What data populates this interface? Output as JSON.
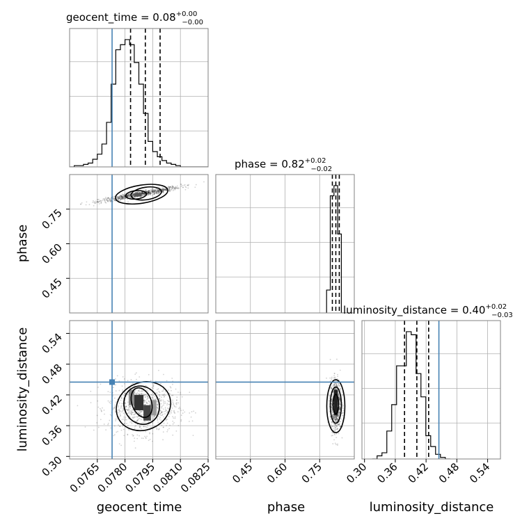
{
  "chart_data": {
    "type": "corner",
    "parameters": [
      "geocent_time",
      "phase",
      "luminosity_distance"
    ],
    "truths": {
      "geocent_time": 0.0773,
      "luminosity_distance": 0.445
    },
    "ranges": {
      "geocent_time": [
        0.075,
        0.0825
      ],
      "phase": [
        0.3,
        0.9
      ],
      "luminosity_distance": [
        0.295,
        0.565
      ]
    },
    "ticks": {
      "geocent_time": [
        "0.0765",
        "0.0780",
        "0.0795",
        "0.0810",
        "0.0825"
      ],
      "phase": [
        "0.45",
        "0.60",
        "0.75"
      ],
      "luminosity_distance": [
        "0.30",
        "0.36",
        "0.42",
        "0.48",
        "0.54"
      ]
    },
    "titles": [
      {
        "param": "geocent_time",
        "median": "0.08",
        "plus": "+0.00",
        "minus": "−0.00"
      },
      {
        "param": "phase",
        "median": "0.82",
        "plus": "+0.02",
        "minus": "−0.02"
      },
      {
        "param": "luminosity_distance",
        "median": "0.40",
        "plus": "+0.02",
        "minus": "−0.03"
      }
    ],
    "quantiles": {
      "geocent_time": [
        0.0783,
        0.0791,
        0.0799
      ],
      "phase": [
        0.805,
        0.82,
        0.835
      ],
      "luminosity_distance": [
        0.378,
        0.402,
        0.425
      ]
    },
    "hist_1d": {
      "geocent_time": {
        "edges_start": 0.075,
        "bin_width": 0.00025,
        "counts": [
          0,
          1,
          1,
          2,
          3,
          6,
          10,
          18,
          35,
          65,
          92,
          96,
          100,
          96,
          82,
          65,
          42,
          20,
          12,
          8,
          5,
          3,
          2,
          1,
          0,
          0,
          0,
          0,
          0,
          0
        ]
      },
      "phase": {
        "edges_start": 0.78,
        "bin_width": 0.016,
        "counts": [
          18,
          92,
          100,
          62,
          0,
          0,
          0
        ]
      },
      "luminosity_distance": {
        "edges_start": 0.315,
        "bin_width": 0.0095,
        "counts": [
          0,
          2,
          4,
          18,
          35,
          60,
          60,
          82,
          80,
          55,
          40,
          15,
          8,
          3,
          1,
          0
        ]
      }
    },
    "scatter_2d": {
      "phase_vs_geocent_time": {
        "center": [
          0.0788,
          0.815
        ],
        "trend": 14.0
      },
      "luminosity_distance_vs_geocent_time": {
        "center": [
          0.079,
          0.395
        ]
      },
      "luminosity_distance_vs_phase": {
        "center": [
          0.82,
          0.4
        ]
      }
    },
    "colors": {
      "truth": "#4682b4",
      "hist": "#000000",
      "grid": "#b0b0b0"
    }
  }
}
